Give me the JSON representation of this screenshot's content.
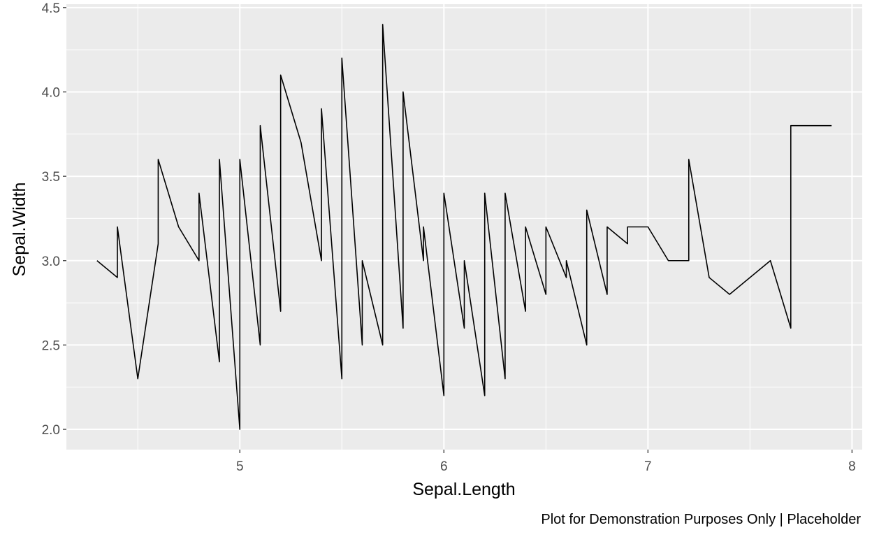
{
  "chart_data": {
    "type": "line",
    "title": "",
    "xlabel": "Sepal.Length",
    "ylabel": "Sepal.Width",
    "caption": "Plot for Demonstration Purposes Only | Placeholder",
    "xlim": [
      4.15,
      8.05
    ],
    "ylim": [
      1.88,
      4.52
    ],
    "x_ticks": [
      5,
      6,
      7,
      8
    ],
    "x_tick_labels": [
      "5",
      "6",
      "7",
      "8"
    ],
    "y_ticks": [
      2.0,
      2.5,
      3.0,
      3.5,
      4.0,
      4.5
    ],
    "y_tick_labels": [
      "2.0",
      "2.5",
      "3.0",
      "3.5",
      "4.0",
      "4.5"
    ],
    "grid": true,
    "colors": {
      "panel": "#ebebeb",
      "grid": "#ffffff",
      "line": "#000000",
      "tick": "#4d4d4d"
    },
    "series": [
      {
        "x": [
          4.3,
          4.4,
          4.4,
          4.4,
          4.5,
          4.6,
          4.6,
          4.6,
          4.6,
          4.7,
          4.7,
          4.8,
          4.8,
          4.8,
          4.8,
          4.8,
          4.9,
          4.9,
          4.9,
          4.9,
          4.9,
          4.9,
          5.0,
          5.0,
          5.0,
          5.0,
          5.0,
          5.0,
          5.0,
          5.0,
          5.0,
          5.0,
          5.1,
          5.1,
          5.1,
          5.1,
          5.1,
          5.1,
          5.1,
          5.1,
          5.1,
          5.2,
          5.2,
          5.2,
          5.2,
          5.3,
          5.4,
          5.4,
          5.4,
          5.4,
          5.4,
          5.4,
          5.5,
          5.5,
          5.5,
          5.5,
          5.5,
          5.5,
          5.5,
          5.6,
          5.6,
          5.6,
          5.6,
          5.6,
          5.6,
          5.7,
          5.7,
          5.7,
          5.7,
          5.7,
          5.7,
          5.7,
          5.7,
          5.8,
          5.8,
          5.8,
          5.8,
          5.8,
          5.8,
          5.8,
          5.9,
          5.9,
          5.9,
          6.0,
          6.0,
          6.0,
          6.0,
          6.0,
          6.0,
          6.1,
          6.1,
          6.1,
          6.1,
          6.1,
          6.1,
          6.2,
          6.2,
          6.2,
          6.2,
          6.3,
          6.3,
          6.3,
          6.3,
          6.3,
          6.3,
          6.3,
          6.3,
          6.3,
          6.4,
          6.4,
          6.4,
          6.4,
          6.4,
          6.4,
          6.4,
          6.5,
          6.5,
          6.5,
          6.5,
          6.5,
          6.6,
          6.6,
          6.7,
          6.7,
          6.7,
          6.7,
          6.7,
          6.7,
          6.7,
          6.7,
          6.8,
          6.8,
          6.8,
          6.9,
          6.9,
          6.9,
          6.9,
          7.0,
          7.1,
          7.2,
          7.2,
          7.2,
          7.3,
          7.4,
          7.6,
          7.7,
          7.7,
          7.7,
          7.7,
          7.9
        ],
        "y": [
          3.0,
          2.9,
          3.0,
          3.2,
          2.3,
          3.1,
          3.2,
          3.4,
          3.6,
          3.2,
          3.2,
          3.0,
          3.0,
          3.1,
          3.4,
          3.4,
          2.4,
          2.5,
          3.0,
          3.1,
          3.1,
          3.6,
          2.0,
          2.3,
          3.0,
          3.2,
          3.3,
          3.4,
          3.4,
          3.5,
          3.5,
          3.6,
          2.5,
          3.3,
          3.4,
          3.5,
          3.5,
          3.5,
          3.7,
          3.8,
          3.8,
          2.7,
          3.4,
          3.5,
          4.1,
          3.7,
          3.0,
          3.4,
          3.4,
          3.7,
          3.9,
          3.9,
          2.3,
          2.4,
          2.4,
          2.5,
          2.6,
          3.5,
          4.2,
          2.5,
          2.7,
          2.8,
          2.9,
          2.9,
          3.0,
          2.5,
          2.6,
          2.8,
          2.8,
          2.9,
          3.0,
          3.8,
          4.4,
          2.6,
          2.7,
          2.7,
          2.7,
          2.7,
          2.8,
          4.0,
          3.0,
          3.0,
          3.2,
          2.2,
          2.2,
          2.7,
          2.9,
          3.0,
          3.4,
          2.6,
          2.8,
          2.8,
          2.9,
          3.0,
          3.0,
          2.2,
          2.8,
          2.9,
          3.4,
          2.3,
          2.5,
          2.5,
          2.5,
          2.7,
          2.8,
          2.9,
          3.3,
          3.4,
          2.7,
          2.8,
          2.8,
          2.9,
          3.1,
          3.2,
          3.2,
          2.8,
          3.0,
          3.0,
          3.0,
          3.2,
          2.9,
          3.0,
          2.5,
          3.0,
          3.0,
          3.1,
          3.1,
          3.1,
          3.3,
          3.3,
          2.8,
          3.0,
          3.2,
          3.1,
          3.1,
          3.1,
          3.2,
          3.2,
          3.0,
          3.0,
          3.2,
          3.6,
          2.9,
          2.8,
          3.0,
          2.6,
          2.8,
          3.0,
          3.8,
          3.8
        ]
      }
    ]
  }
}
